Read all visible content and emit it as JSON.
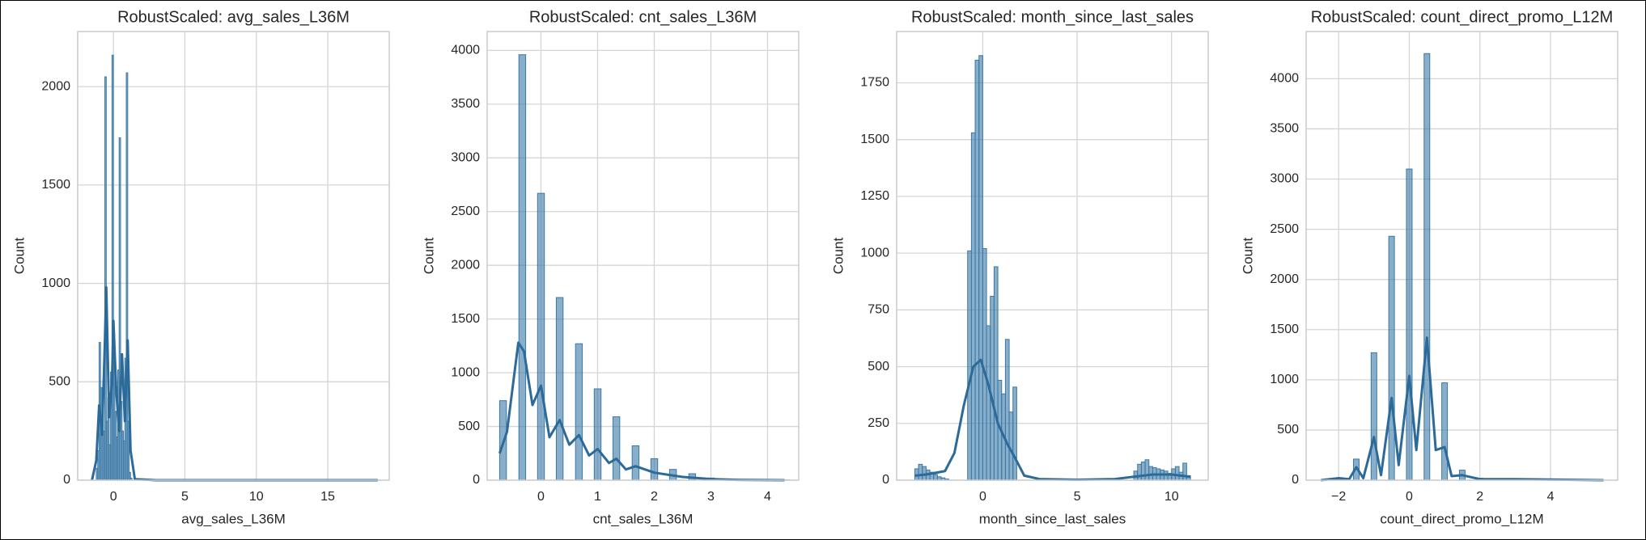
{
  "chart_data": [
    {
      "type": "histogram",
      "title": "RobustScaled: avg_sales_L36M",
      "xlabel": "avg_sales_L36M",
      "ylabel": "Count",
      "bins": [
        -1.2,
        -1.1,
        -1.0,
        -0.9,
        -0.8,
        -0.7,
        -0.6,
        -0.5,
        -0.4,
        -0.3,
        -0.2,
        -0.1,
        0,
        0.1,
        0.2,
        0.3,
        0.4,
        0.5,
        0.6,
        0.7,
        0.8,
        0.9,
        1.0,
        1.1,
        1.2,
        1.3
      ],
      "counts": [
        60,
        150,
        700,
        470,
        380,
        250,
        2050,
        300,
        420,
        180,
        550,
        2160,
        600,
        350,
        220,
        560,
        1740,
        400,
        250,
        200,
        620,
        2070,
        300,
        40,
        10
      ],
      "kde": {
        "x": [
          -1.5,
          -1.2,
          -1.0,
          -0.8,
          -0.6,
          -0.5,
          -0.3,
          -0.1,
          0,
          0.2,
          0.4,
          0.6,
          0.8,
          1.0,
          1.2,
          1.5,
          3,
          18.5
        ],
        "y": [
          0,
          100,
          380,
          230,
          700,
          980,
          320,
          500,
          810,
          450,
          250,
          640,
          300,
          710,
          150,
          5,
          0,
          0
        ]
      },
      "color": "#3a78a6",
      "line_color": "#2c6a99",
      "xlim": [
        -2.5,
        19.3
      ],
      "ylim": [
        0,
        2280
      ],
      "xticks": [
        0,
        5,
        10,
        15
      ],
      "yticks": [
        0,
        500,
        1000,
        1500,
        2000
      ],
      "grid": true
    },
    {
      "type": "histogram",
      "title": "RobustScaled: cnt_sales_L36M",
      "xlabel": "cnt_sales_L36M",
      "ylabel": "Count",
      "bins": [
        -0.73,
        -0.61,
        -0.39,
        -0.27,
        -0.06,
        0.06,
        0.27,
        0.39,
        0.61,
        0.73,
        0.94,
        1.06,
        1.27,
        1.39,
        1.61,
        1.73,
        1.94,
        2.06,
        2.27,
        2.39,
        2.61,
        2.73,
        2.94,
        3.06,
        3.27,
        3.39,
        3.61,
        3.73,
        3.94,
        4.06,
        4.27,
        4.39
      ],
      "counts": [
        740,
        0,
        3960,
        0,
        2670,
        0,
        1700,
        0,
        1270,
        0,
        850,
        0,
        590,
        0,
        320,
        0,
        200,
        0,
        100,
        0,
        60,
        0,
        20,
        0,
        10,
        0,
        5,
        0,
        3,
        0,
        2
      ],
      "kde": {
        "x": [
          -0.73,
          -0.6,
          -0.4,
          -0.3,
          -0.15,
          0,
          0.15,
          0.33,
          0.5,
          0.67,
          0.85,
          1.0,
          1.2,
          1.33,
          1.5,
          1.67,
          2.0,
          2.5,
          3.0,
          3.5,
          4.3
        ],
        "y": [
          250,
          450,
          1280,
          1200,
          700,
          880,
          400,
          560,
          330,
          420,
          230,
          290,
          160,
          200,
          100,
          130,
          70,
          30,
          10,
          3,
          0
        ]
      },
      "color": "#3a78a6",
      "line_color": "#2c6a99",
      "xlim": [
        -0.95,
        4.55
      ],
      "ylim": [
        0,
        4176
      ],
      "xticks": [
        0,
        1,
        2,
        3,
        4
      ],
      "yticks": [
        0,
        500,
        1000,
        1500,
        2000,
        2500,
        3000,
        3500,
        4000
      ],
      "grid": true
    },
    {
      "type": "histogram",
      "title": "RobustScaled: month_since_last_sales",
      "xlabel": "month_since_last_sales",
      "ylabel": "Count",
      "bins": [
        -3.6,
        -3.4,
        -3.2,
        -3.0,
        -2.8,
        -2.6,
        -2.4,
        -2.2,
        -2.0,
        -1.8,
        -1.6,
        -1.4,
        -1.2,
        -1.0,
        -0.8,
        -0.6,
        -0.4,
        -0.2,
        0,
        0.2,
        0.4,
        0.6,
        0.8,
        1.0,
        1.2,
        1.4,
        1.6,
        1.8,
        2.0,
        2.2,
        8.0,
        8.2,
        8.4,
        8.6,
        8.8,
        9.0,
        9.2,
        9.4,
        9.6,
        9.8,
        10.0,
        10.2,
        10.4,
        10.6,
        10.8,
        11.0
      ],
      "counts": [
        50,
        70,
        60,
        45,
        35,
        25,
        15,
        10,
        5,
        0,
        0,
        0,
        0,
        0,
        1010,
        1530,
        1850,
        1870,
        1020,
        680,
        810,
        940,
        440,
        380,
        620,
        300,
        410,
        0,
        0,
        0,
        40,
        70,
        80,
        90,
        60,
        55,
        50,
        45,
        40,
        30,
        50,
        60,
        35,
        75,
        20
      ],
      "kde": {
        "x": [
          -3.6,
          -3,
          -2,
          -1.5,
          -1,
          -0.5,
          -0.1,
          0.3,
          0.8,
          1.3,
          1.7,
          2.2,
          3,
          5,
          7,
          8,
          9,
          10,
          10.5,
          11
        ],
        "y": [
          20,
          25,
          40,
          120,
          330,
          500,
          530,
          420,
          250,
          160,
          100,
          20,
          5,
          2,
          5,
          15,
          25,
          25,
          20,
          15
        ]
      },
      "color": "#3a78a6",
      "line_color": "#2c6a99",
      "xlim": [
        -4.56,
        11.94
      ],
      "ylim": [
        0,
        1976
      ],
      "xticks": [
        0,
        5,
        10
      ],
      "yticks": [
        0,
        250,
        500,
        750,
        1000,
        1250,
        1500,
        1750
      ],
      "grid": true
    },
    {
      "type": "histogram",
      "title": "RobustScaled: count_direct_promo_L12M",
      "xlabel": "count_direct_promo_L12M",
      "ylabel": "Count",
      "bins": [
        -2.08,
        -1.92,
        -1.58,
        -1.42,
        -1.08,
        -0.92,
        -0.58,
        -0.42,
        -0.08,
        0.08,
        0.42,
        0.58,
        0.92,
        1.08,
        1.42,
        1.58,
        1.92,
        2.08,
        2.42,
        2.58,
        2.92,
        3.08
      ],
      "counts": [
        15,
        0,
        210,
        0,
        1270,
        0,
        2430,
        0,
        3100,
        0,
        4250,
        0,
        970,
        0,
        100,
        0,
        20,
        0,
        5,
        0,
        10
      ],
      "kde": {
        "x": [
          -2.5,
          -2,
          -1.7,
          -1.5,
          -1.3,
          -1,
          -0.8,
          -0.5,
          -0.3,
          0,
          0.2,
          0.5,
          0.75,
          1.0,
          1.2,
          1.5,
          2,
          3,
          5.5
        ],
        "y": [
          0,
          20,
          10,
          130,
          20,
          430,
          50,
          820,
          150,
          1040,
          300,
          1420,
          300,
          330,
          40,
          50,
          10,
          10,
          0
        ]
      },
      "color": "#3a78a6",
      "line_color": "#2c6a99",
      "xlim": [
        -2.92,
        5.9
      ],
      "ylim": [
        0,
        4470
      ],
      "xticks": [
        {
          "value": -2,
          "label": "−2"
        },
        0,
        2,
        4
      ],
      "yticks": [
        0,
        500,
        1000,
        1500,
        2000,
        2500,
        3000,
        3500,
        4000
      ],
      "grid": true
    }
  ]
}
